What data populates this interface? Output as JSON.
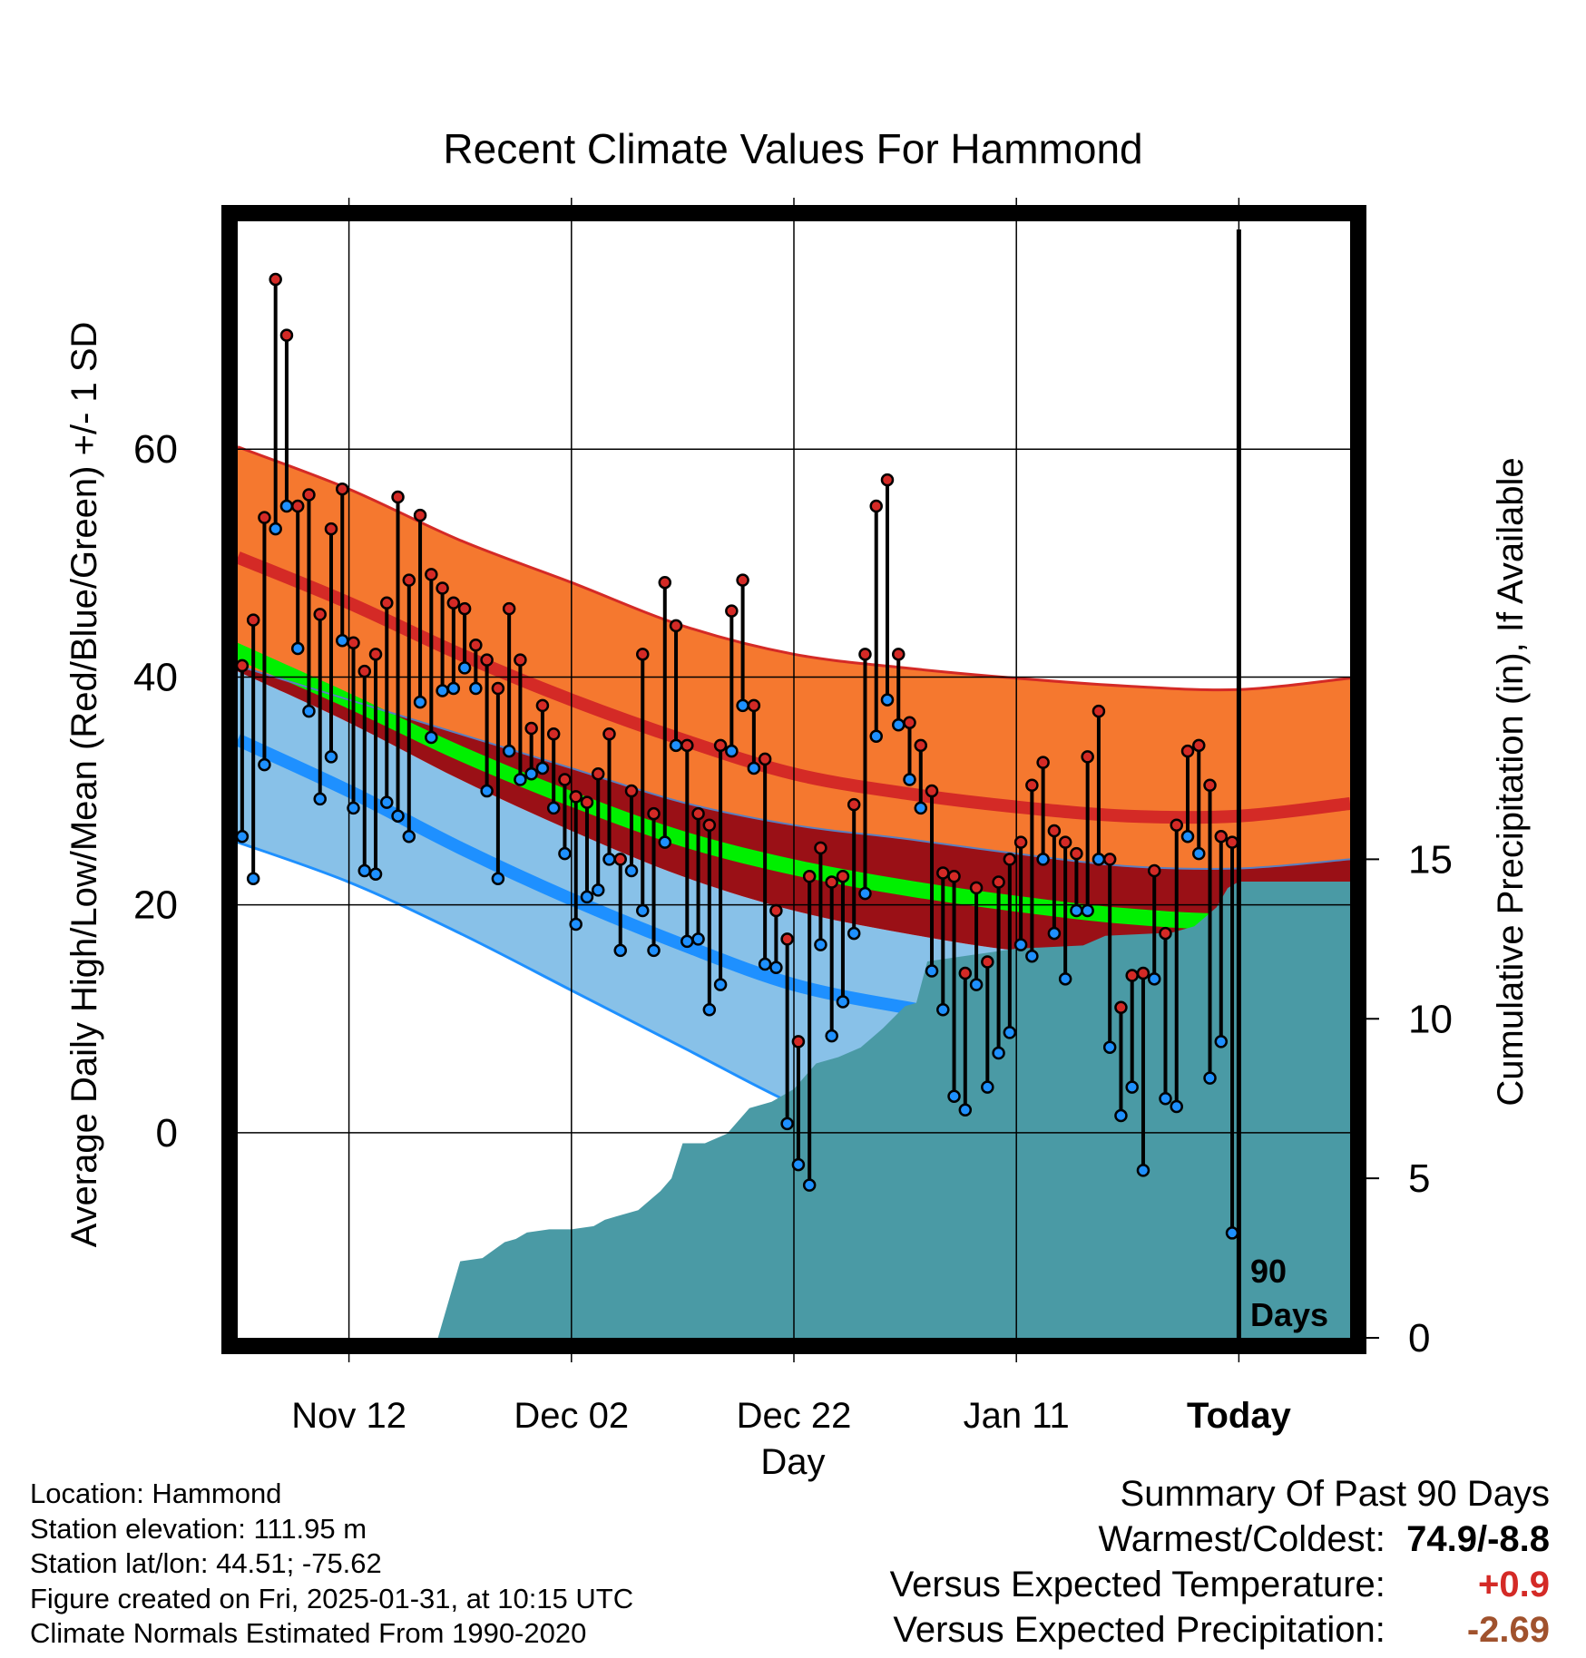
{
  "chart_data": {
    "type": "line",
    "title": "Recent Climate Values For Hammond",
    "xlabel": "Day",
    "ylabel": "Average Daily High/Low/Mean (Red/Blue/Green) +/- 1 SD",
    "ylabel_right": "Cumulative Precipitation (in), If Available",
    "xlim": [
      0,
      100
    ],
    "ylim": [
      -18,
      80
    ],
    "y2lim": [
      0,
      35
    ],
    "x_ticks": [
      {
        "x": 10,
        "label": "Nov 12"
      },
      {
        "x": 30,
        "label": "Dec 02"
      },
      {
        "x": 50,
        "label": "Dec 22"
      },
      {
        "x": 70,
        "label": "Jan 11"
      },
      {
        "x": 90,
        "label": "Today"
      }
    ],
    "y_ticks": [
      0,
      20,
      40,
      60
    ],
    "y_minor_ticks": [
      -10,
      10,
      30,
      50,
      70
    ],
    "y2_ticks": [
      0,
      5,
      10,
      15
    ],
    "today_x": 90,
    "today_label": [
      "90",
      "Days"
    ],
    "colors": {
      "high_band": "#f5782f",
      "high_mean": "#d42a26",
      "low_band": "#88c1e8",
      "low_mean": "#1e90ff",
      "mid_band": "#9a1016",
      "mean_line": "#00f000",
      "precip": "#4a9aa5",
      "high_dot": "#d42a26",
      "low_dot": "#1e90ff"
    },
    "normals": {
      "x": [
        0,
        10,
        20,
        30,
        40,
        50,
        60,
        70,
        80,
        90,
        100
      ],
      "high_upper": [
        60.2,
        56.5,
        52.0,
        48.3,
        44.5,
        42.0,
        40.8,
        39.9,
        39.2,
        38.9,
        39.9
      ],
      "high_mean": [
        50.5,
        46.5,
        42.0,
        38.0,
        34.5,
        31.5,
        29.8,
        28.6,
        27.8,
        27.8,
        28.9
      ],
      "high_lower": [
        41.0,
        38.0,
        35.0,
        32.0,
        29.0,
        27.0,
        25.8,
        24.5,
        23.4,
        23.2,
        24.0
      ],
      "mean_upper": [
        43.0,
        38.6,
        34.0,
        30.0,
        26.5,
        24.0,
        22.2,
        20.8,
        19.7,
        19.3,
        20.5
      ],
      "mean_lower": [
        41.5,
        37.2,
        32.6,
        28.6,
        25.1,
        22.6,
        20.8,
        19.4,
        18.3,
        17.9,
        19.1
      ],
      "low_upper": [
        40.5,
        36.0,
        31.0,
        26.5,
        22.5,
        19.5,
        17.5,
        16.0,
        15.5,
        16.0,
        18.0
      ],
      "low_mean": [
        34.5,
        30.0,
        25.0,
        20.5,
        16.5,
        13.0,
        11.0,
        9.5,
        8.5,
        8.5,
        10.0
      ],
      "low_lower": [
        25.5,
        22.0,
        17.5,
        12.5,
        7.5,
        2.5,
        -1.5,
        -4.5,
        -5.5,
        -5.0,
        -3.0
      ]
    },
    "series": [
      {
        "name": "Daily High",
        "values": [
          41.0,
          45.0,
          54.0,
          74.9,
          70.0,
          55.0,
          56.0,
          45.5,
          53.0,
          56.5,
          43.0,
          40.5,
          42.0,
          46.5,
          55.8,
          48.5,
          54.2,
          49.0,
          47.8,
          46.5,
          46.0,
          42.8,
          41.5,
          39.0,
          46.0,
          41.5,
          35.5,
          37.5,
          35.0,
          31.0,
          29.5,
          29.0,
          31.5,
          35.0,
          24.0,
          30.0,
          42.0,
          28.0,
          48.3,
          44.5,
          34.0,
          28.0,
          27.0,
          34.0,
          45.8,
          48.5,
          37.5,
          32.8,
          19.5,
          17.0,
          8.0,
          22.5,
          25.0,
          22.0,
          22.5,
          28.8,
          42.0,
          55.0,
          57.3,
          42.0,
          36.0,
          34.0,
          30.0,
          22.8,
          22.5,
          14.0,
          21.5,
          15.0,
          22.0,
          24.0,
          25.5,
          30.5,
          32.5,
          26.5,
          25.5,
          24.5,
          33.0,
          37.0,
          24.0,
          11.0,
          13.8,
          14.0,
          23.0,
          17.5,
          27.0,
          33.5,
          34.0,
          30.5,
          26.0,
          25.5
        ]
      },
      {
        "name": "Daily Low",
        "values": [
          26.0,
          22.3,
          32.3,
          53.0,
          55.0,
          42.5,
          37.0,
          29.3,
          33.0,
          43.2,
          28.5,
          23.0,
          22.7,
          29.0,
          27.8,
          26.0,
          37.8,
          34.7,
          38.8,
          39.0,
          40.8,
          39.0,
          30.0,
          22.3,
          33.5,
          31.0,
          31.5,
          32.0,
          28.5,
          24.5,
          18.3,
          20.7,
          21.3,
          24.0,
          16.0,
          23.0,
          19.5,
          16.0,
          25.5,
          34.0,
          16.8,
          17.0,
          10.8,
          13.0,
          33.5,
          37.5,
          32.0,
          14.8,
          14.5,
          0.8,
          -2.8,
          -4.6,
          16.5,
          8.5,
          11.5,
          17.5,
          21.0,
          34.8,
          38.0,
          35.8,
          31.0,
          28.5,
          14.2,
          10.8,
          3.2,
          2.0,
          13.0,
          4.0,
          7.0,
          8.8,
          16.5,
          15.5,
          24.0,
          17.5,
          13.5,
          19.5,
          19.5,
          24.0,
          7.5,
          1.5,
          4.0,
          -3.3,
          13.5,
          3.0,
          2.3,
          26.0,
          24.5,
          4.8,
          8.0,
          -8.8
        ]
      }
    ],
    "precip": {
      "x": [
        18,
        20,
        22,
        24,
        25,
        26,
        28,
        30,
        32,
        33,
        34,
        36,
        38,
        39,
        40,
        42,
        44,
        46,
        48,
        50,
        52,
        54,
        56,
        58,
        60,
        61,
        62,
        66,
        70,
        76,
        78,
        84,
        86,
        88,
        89,
        90,
        100
      ],
      "y": [
        0,
        2.4,
        2.5,
        3.0,
        3.1,
        3.3,
        3.4,
        3.4,
        3.5,
        3.7,
        3.8,
        4.0,
        4.6,
        5.0,
        6.1,
        6.1,
        6.4,
        7.2,
        7.4,
        7.8,
        8.6,
        8.8,
        9.1,
        9.7,
        10.4,
        10.5,
        11.8,
        12.0,
        12.2,
        12.3,
        12.6,
        12.7,
        12.9,
        13.5,
        14.1,
        14.3,
        14.3
      ]
    }
  },
  "location": {
    "line1": "Location: Hammond",
    "line2": "Station elevation: 111.95 m",
    "line3": "Station lat/lon: 44.51; -75.62",
    "line4": "Figure created on Fri, 2025-01-31, at 10:15 UTC",
    "line5": "Climate Normals Estimated From 1990-2020"
  },
  "summary": {
    "title": "Summary Of Past 90 Days",
    "warmest_coldest_label": "Warmest/Coldest:",
    "warmest_coldest_value": "74.9/-8.8",
    "temp_label": "Versus Expected Temperature:",
    "temp_value": "+0.9",
    "temp_color": "#d42a26",
    "precip_label": "Versus Expected Precipitation:",
    "precip_value": "-2.69",
    "precip_color": "#a0522d"
  }
}
